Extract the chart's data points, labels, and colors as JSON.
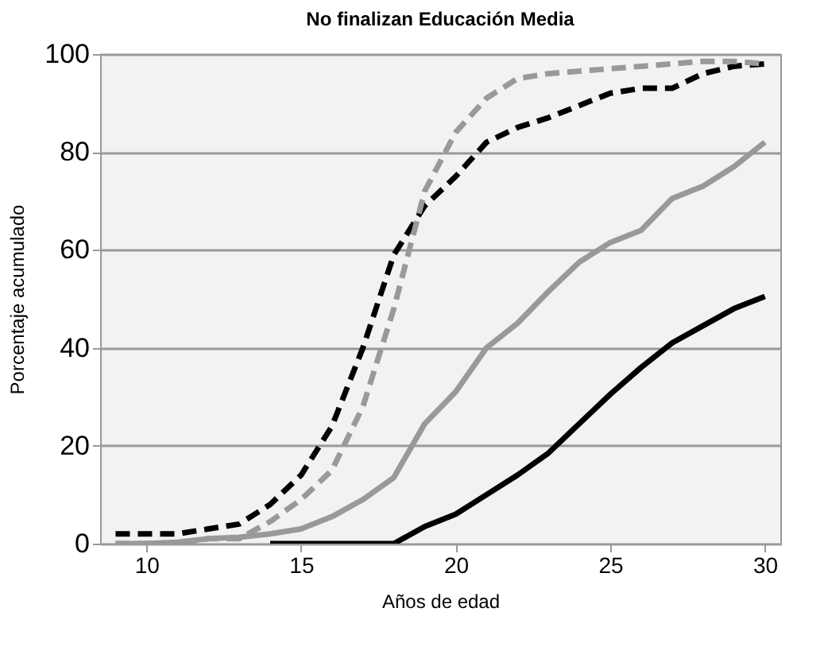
{
  "chart_data": {
    "type": "line",
    "title": "No finalizan Educación Media",
    "xlabel": "Años de edad",
    "ylabel": "Porcentaje acumulado",
    "x": [
      9,
      10,
      11,
      12,
      13,
      14,
      15,
      16,
      17,
      18,
      19,
      20,
      21,
      22,
      23,
      24,
      25,
      26,
      27,
      28,
      29,
      30
    ],
    "xlim": [
      8.5,
      30.5
    ],
    "xticks": [
      10,
      15,
      20,
      25,
      30
    ],
    "ylim": [
      0,
      100
    ],
    "yticks": [
      0,
      20,
      40,
      60,
      80,
      100
    ],
    "grid": "y",
    "series": [
      {
        "color": "#000000",
        "line_style": "dashed",
        "values": [
          2,
          2,
          2,
          3,
          4,
          8,
          14,
          24,
          40,
          59,
          69,
          75,
          82,
          85,
          87,
          89.5,
          92,
          93,
          93,
          96,
          97.5,
          98
        ]
      },
      {
        "color": "#999999",
        "line_style": "dashed",
        "values": [
          0,
          0,
          0,
          1,
          1,
          4.5,
          9,
          15,
          28,
          48,
          72,
          84,
          91,
          95,
          96,
          96.5,
          97,
          97.5,
          98,
          98.5,
          98.5,
          98
        ]
      },
      {
        "color": "#999999",
        "line_style": "solid",
        "values": [
          0,
          0,
          0.3,
          1,
          1.3,
          2,
          3,
          5.5,
          9,
          13.5,
          24.5,
          31,
          40,
          45,
          51.5,
          57.5,
          61.5,
          64,
          70.5,
          73,
          77,
          82
        ]
      },
      {
        "color": "#000000",
        "line_style": "solid",
        "values": [
          null,
          null,
          null,
          null,
          null,
          0,
          0,
          0,
          0,
          0,
          3.5,
          6,
          10,
          14,
          18.5,
          24.5,
          30.5,
          36,
          41,
          44.5,
          48,
          50.5
        ]
      }
    ]
  }
}
